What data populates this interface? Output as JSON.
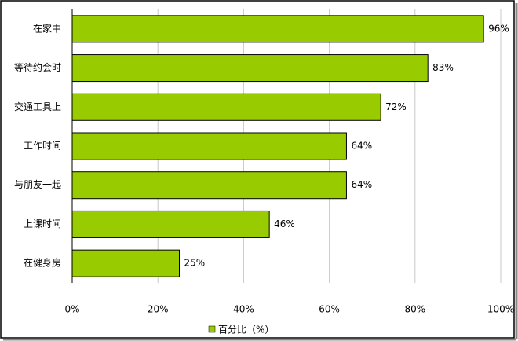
{
  "chart_data": {
    "type": "hbar",
    "categories": [
      "在家中",
      "等待约会时",
      "交通工具上",
      "工作时间",
      "与朋友一起",
      "上课时间",
      "在健身房"
    ],
    "series": [
      {
        "name": "百分比（%）",
        "color": "#99cc00",
        "values": [
          96,
          83,
          72,
          64,
          64,
          46,
          25
        ],
        "value_labels": [
          "96%",
          "83%",
          "72%",
          "64%",
          "64%",
          "46%",
          "25%"
        ]
      }
    ],
    "xlim": [
      0,
      100
    ],
    "xticks": [
      {
        "value": 0,
        "label": "0%"
      },
      {
        "value": 20,
        "label": "20%"
      },
      {
        "value": 40,
        "label": "40%"
      },
      {
        "value": 60,
        "label": "60%"
      },
      {
        "value": 80,
        "label": "80%"
      },
      {
        "value": 100,
        "label": "100%"
      }
    ],
    "grid": true
  }
}
